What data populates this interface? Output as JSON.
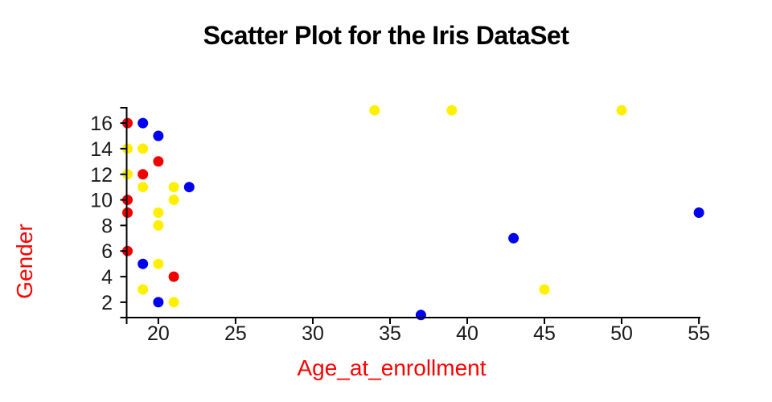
{
  "chart_data": {
    "type": "scatter",
    "title": "Scatter Plot for the Iris DataSet",
    "xlabel": "Age_at_enrollment",
    "ylabel": "Gender",
    "xlim": [
      17.9,
      55.2
    ],
    "ylim": [
      0.8,
      17.2
    ],
    "x_ticks": [
      20,
      25,
      30,
      35,
      40,
      45,
      50,
      55
    ],
    "y_ticks": [
      2,
      4,
      6,
      8,
      10,
      12,
      14,
      16
    ],
    "grid": false,
    "legend": "none",
    "marker_radius": 6.5,
    "colors": {
      "title": "#000000",
      "axis": "#000000",
      "tick_label": "#1a1a1a",
      "axis_label": "#ff0000",
      "background": "#ffffff"
    },
    "series": [
      {
        "name": "red",
        "color": "#f00000",
        "points": [
          [
            18,
            16
          ],
          [
            20,
            13
          ],
          [
            19,
            12
          ],
          [
            18,
            10
          ],
          [
            18,
            9
          ],
          [
            18,
            6
          ],
          [
            21,
            4
          ]
        ]
      },
      {
        "name": "blue",
        "color": "#0000f0",
        "points": [
          [
            19,
            16
          ],
          [
            20,
            15
          ],
          [
            22,
            11
          ],
          [
            19,
            5
          ],
          [
            20,
            2
          ],
          [
            37,
            1
          ],
          [
            43,
            7
          ],
          [
            55,
            9
          ]
        ]
      },
      {
        "name": "yellow",
        "color": "#fff000",
        "points": [
          [
            18,
            14
          ],
          [
            19,
            14
          ],
          [
            18,
            12
          ],
          [
            19,
            11
          ],
          [
            21,
            11
          ],
          [
            21,
            10
          ],
          [
            20,
            9
          ],
          [
            20,
            8
          ],
          [
            20,
            5
          ],
          [
            19,
            3
          ],
          [
            21,
            2
          ],
          [
            34,
            17
          ],
          [
            39,
            17
          ],
          [
            50,
            17
          ],
          [
            45,
            3
          ]
        ]
      }
    ]
  }
}
